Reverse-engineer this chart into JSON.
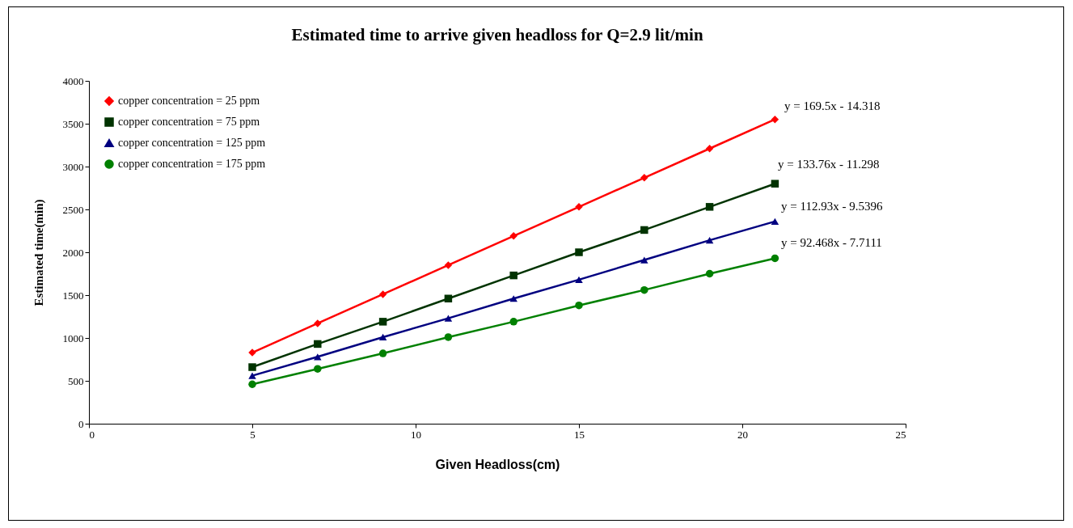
{
  "chart_data": {
    "type": "line",
    "title": "Estimated time to arrive given headloss for Q=2.9 lit/min",
    "xlabel": "Given Headloss(cm)",
    "ylabel": "Estimated time(min)",
    "x": [
      5,
      7,
      9,
      11,
      13,
      15,
      17,
      19,
      21
    ],
    "series": [
      {
        "name": "copper concentration = 25 ppm",
        "color": "#ff0000",
        "marker": "diamond",
        "values": [
          830,
          1170,
          1510,
          1850,
          2190,
          2530,
          2870,
          3210,
          3550
        ]
      },
      {
        "name": "copper concentration = 75 ppm",
        "color": "#003300",
        "marker": "square",
        "values": [
          660,
          930,
          1190,
          1460,
          1730,
          2000,
          2260,
          2530,
          2800
        ]
      },
      {
        "name": "copper concentration = 125 ppm",
        "color": "#000080",
        "marker": "triangle",
        "values": [
          560,
          780,
          1010,
          1230,
          1460,
          1680,
          1910,
          2140,
          2360
        ]
      },
      {
        "name": "copper concentration = 175 ppm",
        "color": "#008000",
        "marker": "circle",
        "values": [
          460,
          640,
          820,
          1010,
          1190,
          1380,
          1560,
          1750,
          1930
        ]
      }
    ],
    "annotations": [
      "y = 169.5x - 14.318",
      "y = 133.76x - 11.298",
      "y = 112.93x - 9.5396",
      "y = 92.468x - 7.7111"
    ],
    "xlim": [
      0,
      25
    ],
    "xticks": [
      0,
      5,
      10,
      15,
      20,
      25
    ],
    "ylim": [
      0,
      4000
    ],
    "yticks": [
      0,
      500,
      1000,
      1500,
      2000,
      2500,
      3000,
      3500,
      4000
    ],
    "grid": false,
    "legend": "top left",
    "line_style": "solid"
  }
}
